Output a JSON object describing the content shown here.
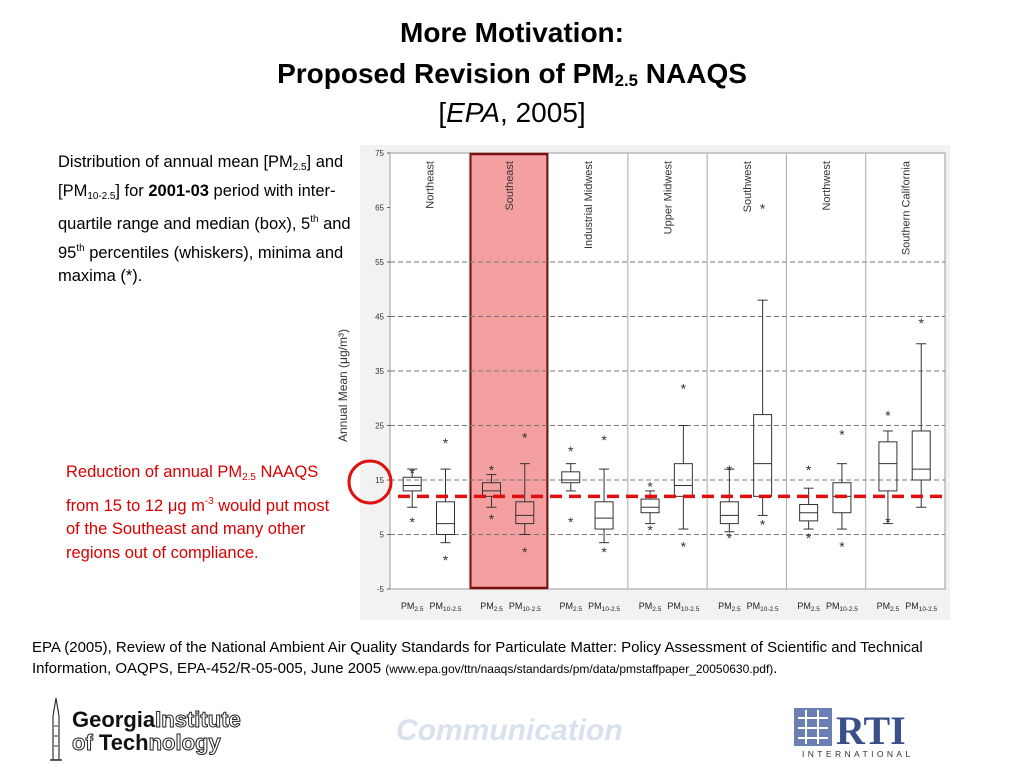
{
  "title": {
    "line1": "More Motivation:",
    "line2_pre": "Proposed Revision of PM",
    "line2_sub": "2.5",
    "line2_post": " NAAQS",
    "line3_open": "[",
    "line3_it": "EPA",
    "line3_rest": ", 2005]"
  },
  "description": {
    "a": "Distribution of annual mean [PM",
    "a_sub": "2.5",
    "b": "] and [PM",
    "b_sub": "10-2.5",
    "c": "] for ",
    "bold": "2001-03",
    "d": " period with inter-quartile range and median (box), 5",
    "d_sup": "th",
    "e": " and 95",
    "e_sup": "th",
    "f": " percentiles (whiskers), minima and maxima (*)."
  },
  "callout": {
    "a": "Reduction of annual PM",
    "a_sub": "2.5",
    "b": " NAAQS from 15 to 12 ",
    "mu": "μ",
    "c": "g m",
    "c_sup": "-3",
    "d": " would put most of the Southeast and many other regions out of compliance."
  },
  "reference": {
    "main": "EPA (2005), Review of the National Ambient Air Quality Standards for Particulate Matter: Policy Assessment of Scientific and Technical Information, OAQPS, EPA-452/R-05-005, June 2005 ",
    "url": "(www.epa.gov/ttn/naaqs/standards/pm/data/pmstaffpaper_20050630.pdf)",
    "end": "."
  },
  "footer": {
    "gt_line1a": "Georgia",
    "gt_line1b": "Institute",
    "gt_line2a": "of ",
    "gt_line2b": "Tech",
    "gt_line2c": "nology",
    "communication": "Communication",
    "rti": "RTI",
    "rti_sub": "INTERNATIONAL"
  },
  "colors": {
    "highlight": "#f4a0a0",
    "highlight_border": "#7a1010",
    "standard_line": "#e01010",
    "text_red": "#d90000"
  },
  "chart_data": {
    "type": "box",
    "ylabel": "Annual Mean (μg/m³)",
    "ylim": [
      -5,
      75
    ],
    "yticks": [
      -5,
      5,
      15,
      25,
      35,
      45,
      55,
      65,
      75
    ],
    "dashed_gridlines": [
      5,
      15,
      25,
      35,
      45,
      55
    ],
    "highlighted_region": "Southeast",
    "proposed_standard": 12,
    "series_labels": [
      {
        "base": "PM",
        "sub": "2.5"
      },
      {
        "base": "PM",
        "sub": "10-2.5"
      }
    ],
    "regions": [
      {
        "name": "Northeast",
        "pm25": {
          "whisker_low": 10,
          "q1": 13,
          "median": 14,
          "q3": 15.5,
          "whisker_high": 17,
          "outliers": [
            16.5,
            7.5
          ]
        },
        "pm10_25": {
          "whisker_low": 3.5,
          "q1": 5,
          "median": 7,
          "q3": 11,
          "whisker_high": 17,
          "outliers": [
            22,
            0.5
          ]
        }
      },
      {
        "name": "Southeast",
        "pm25": {
          "whisker_low": 10,
          "q1": 12,
          "median": 13,
          "q3": 14.5,
          "whisker_high": 16,
          "outliers": [
            17,
            8
          ]
        },
        "pm10_25": {
          "whisker_low": 5,
          "q1": 7,
          "median": 8.5,
          "q3": 11,
          "whisker_high": 18,
          "outliers": [
            23,
            2
          ]
        }
      },
      {
        "name": "Industrial Midwest",
        "pm25": {
          "whisker_low": 13,
          "q1": 14.5,
          "median": 15,
          "q3": 16.5,
          "whisker_high": 18,
          "outliers": [
            20.5,
            7.5
          ]
        },
        "pm10_25": {
          "whisker_low": 3.5,
          "q1": 6,
          "median": 8,
          "q3": 11,
          "whisker_high": 17,
          "outliers": [
            22.5,
            2
          ]
        }
      },
      {
        "name": "Upper Midwest",
        "pm25": {
          "whisker_low": 7,
          "q1": 9,
          "median": 10,
          "q3": 11.5,
          "whisker_high": 13,
          "outliers": [
            14,
            6
          ]
        },
        "pm10_25": {
          "whisker_low": 6,
          "q1": 12,
          "median": 14,
          "q3": 18,
          "whisker_high": 25,
          "outliers": [
            32,
            3
          ]
        }
      },
      {
        "name": "Southwest",
        "pm25": {
          "whisker_low": 5.5,
          "q1": 7,
          "median": 8.5,
          "q3": 11,
          "whisker_high": 17,
          "outliers": [
            17,
            4.5
          ]
        },
        "pm10_25": {
          "whisker_low": 8.5,
          "q1": 12,
          "median": 18,
          "q3": 27,
          "whisker_high": 48,
          "outliers": [
            65,
            7
          ]
        }
      },
      {
        "name": "Northwest",
        "pm25": {
          "whisker_low": 6,
          "q1": 7.5,
          "median": 9,
          "q3": 10.5,
          "whisker_high": 13.5,
          "outliers": [
            17,
            4.5
          ]
        },
        "pm10_25": {
          "whisker_low": 6,
          "q1": 9,
          "median": 12,
          "q3": 14.5,
          "whisker_high": 18,
          "outliers": [
            23.5,
            3
          ]
        }
      },
      {
        "name": "Southern California",
        "pm25": {
          "whisker_low": 7,
          "q1": 13,
          "median": 18,
          "q3": 22,
          "whisker_high": 24,
          "outliers": [
            27,
            7.5
          ]
        },
        "pm10_25": {
          "whisker_low": 10,
          "q1": 15,
          "median": 17,
          "q3": 24,
          "whisker_high": 40,
          "outliers": [
            44
          ]
        }
      }
    ]
  }
}
